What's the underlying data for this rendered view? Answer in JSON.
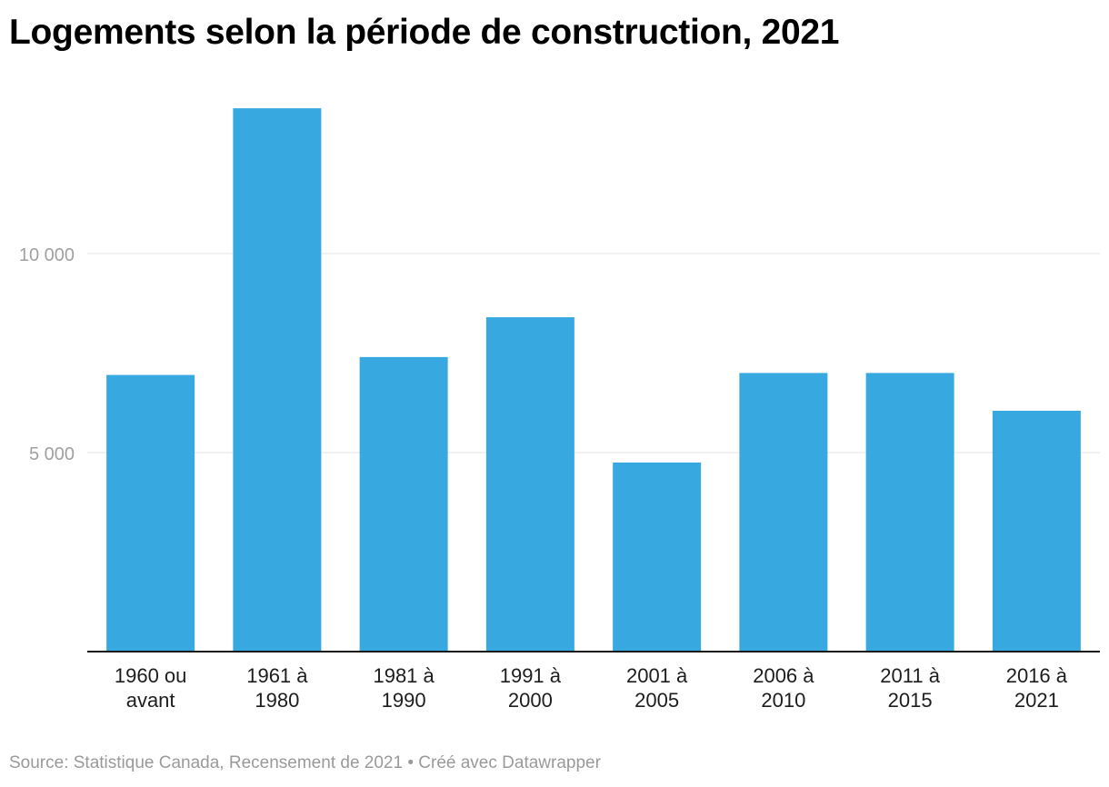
{
  "chart_data": {
    "type": "bar",
    "title": "Logements selon la période de construction, 2021",
    "categories": [
      [
        "1960 ou",
        "avant"
      ],
      [
        "1961 à",
        "1980"
      ],
      [
        "1981 à",
        "1990"
      ],
      [
        "1991 à",
        "2000"
      ],
      [
        "2001 à",
        "2005"
      ],
      [
        "2006 à",
        "2010"
      ],
      [
        "2011 à",
        "2015"
      ],
      [
        "2016 à",
        "2021"
      ]
    ],
    "values": [
      6950,
      13650,
      7400,
      8400,
      4750,
      7000,
      7000,
      6050
    ],
    "ylim": [
      0,
      15000
    ],
    "yticks": [
      5000,
      10000
    ],
    "ytick_labels": [
      "5 000",
      "10 000"
    ],
    "xlabel": "",
    "ylabel": "",
    "grid": true,
    "bar_color": "#38a9e0"
  },
  "footer": {
    "source": "Source: Statistique Canada, Recensement de 2021",
    "separator": " • ",
    "credit": "Créé avec Datawrapper"
  }
}
